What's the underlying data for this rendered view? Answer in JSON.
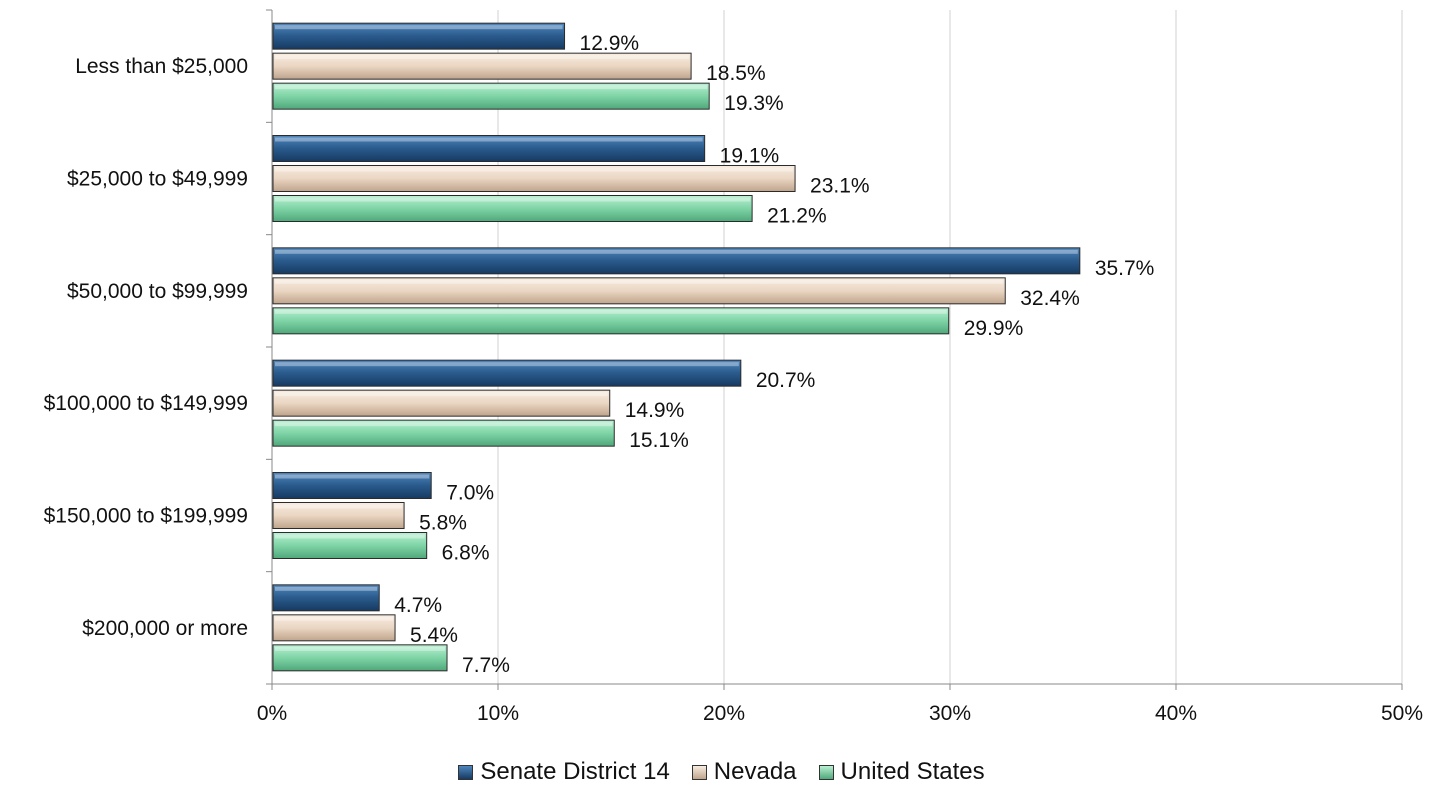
{
  "chart_data": {
    "type": "bar",
    "orientation": "horizontal",
    "categories": [
      "Less than $25,000",
      "$25,000 to $49,999",
      "$50,000 to $99,999",
      "$100,000 to $149,999",
      "$150,000 to $199,999",
      "$200,000 or more"
    ],
    "series": [
      {
        "name": "Senate District 14",
        "values": [
          12.9,
          19.1,
          35.7,
          20.7,
          7.0,
          4.7
        ],
        "labels": [
          "12.9%",
          "19.1%",
          "35.7%",
          "20.7%",
          "7.0%",
          "4.7%"
        ],
        "color": "#2a5a8c"
      },
      {
        "name": "Nevada",
        "values": [
          18.5,
          23.1,
          32.4,
          14.9,
          5.8,
          5.4
        ],
        "labels": [
          "18.5%",
          "23.1%",
          "32.4%",
          "14.9%",
          "5.8%",
          "5.4%"
        ],
        "color": "#ead6c3"
      },
      {
        "name": "United States",
        "values": [
          19.3,
          21.2,
          29.9,
          15.1,
          6.8,
          7.7
        ],
        "labels": [
          "19.3%",
          "21.2%",
          "29.9%",
          "15.1%",
          "6.8%",
          "7.7%"
        ],
        "color": "#7fd4a6"
      }
    ],
    "xlim": [
      0,
      50
    ],
    "xticks": [
      "0%",
      "10%",
      "20%",
      "30%",
      "40%",
      "50%"
    ],
    "xlabel": "",
    "ylabel": "",
    "title": "",
    "grid": "vertical",
    "legend": "bottom"
  }
}
